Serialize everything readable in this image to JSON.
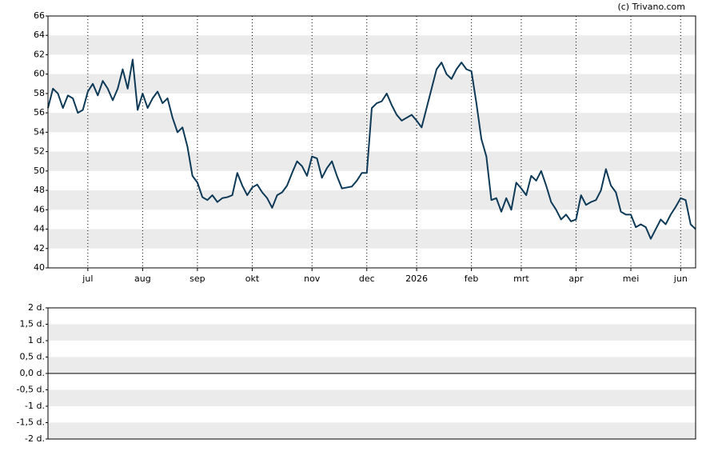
{
  "watermark": "(c) Trivano.com",
  "chart_data": [
    {
      "type": "line",
      "x": [
        0,
        1,
        2,
        3,
        4,
        5,
        6,
        7,
        8,
        9,
        10,
        11,
        12,
        13,
        14,
        15,
        16,
        17,
        18,
        19,
        20,
        21,
        22,
        23,
        24,
        25,
        26,
        27,
        28,
        29,
        30,
        31,
        32,
        33,
        34,
        35,
        36,
        37,
        38,
        39,
        40,
        41,
        42,
        43,
        44,
        45,
        46,
        47,
        48,
        49,
        50,
        51,
        52,
        53,
        54,
        55,
        56,
        57,
        58,
        59,
        60,
        61,
        62,
        63,
        64,
        65,
        66,
        67,
        68,
        69,
        70,
        71,
        72,
        73,
        74,
        75,
        76,
        77,
        78,
        79,
        80,
        81,
        82,
        83,
        84,
        85,
        86,
        87,
        88,
        89,
        90,
        91,
        92,
        93,
        94,
        95,
        96,
        97,
        98,
        99,
        100,
        101,
        102,
        103,
        104,
        105,
        106,
        107,
        108,
        109,
        110,
        111,
        112,
        113,
        114,
        115,
        116,
        117,
        118,
        119,
        120,
        121,
        122,
        123,
        124,
        125,
        126,
        127,
        128,
        129,
        130
      ],
      "series": [
        {
          "color": "#0e3a57",
          "values": [
            56.5,
            58.5,
            58,
            56.5,
            57.8,
            57.5,
            56,
            56.3,
            58.2,
            59,
            57.8,
            59.3,
            58.5,
            57.3,
            58.5,
            60.5,
            58.5,
            61.5,
            56.3,
            58,
            56.5,
            57.5,
            58.2,
            57,
            57.5,
            55.5,
            54,
            54.5,
            52.5,
            49.5,
            48.8,
            47.3,
            47,
            47.5,
            46.8,
            47.2,
            47.3,
            47.5,
            49.8,
            48.5,
            47.5,
            48.3,
            48.6,
            47.8,
            47.2,
            46.2,
            47.5,
            47.8,
            48.5,
            49.8,
            51,
            50.5,
            49.5,
            51.5,
            51.3,
            49.3,
            50.3,
            51,
            49.5,
            48.2,
            48.3,
            48.4,
            49,
            49.8,
            49.8,
            56.5,
            57,
            57.2,
            58,
            56.8,
            55.8,
            55.2,
            55.5,
            55.8,
            55.2,
            54.5,
            56.5,
            58.5,
            60.5,
            61.2,
            60,
            59.5,
            60.5,
            61.2,
            60.5,
            60.3,
            57,
            53.3,
            51.5,
            47,
            47.2,
            45.8,
            47.2,
            46,
            48.8,
            48.2,
            47.5,
            49.5,
            49,
            50,
            48.5,
            46.8,
            46,
            45,
            45.5,
            44.8,
            45,
            47.5,
            46.5,
            46.8,
            47,
            48,
            50.2,
            48.5,
            47.8,
            45.8,
            45.5,
            45.5,
            44.2,
            44.5,
            44.2,
            43,
            44,
            45,
            44.5,
            45.5,
            46.3,
            47.2,
            47,
            44.5,
            44
          ]
        }
      ],
      "xlim": [
        0,
        130
      ],
      "xticks": [
        {
          "value": 8,
          "label": "jul"
        },
        {
          "value": 19,
          "label": "aug"
        },
        {
          "value": 30,
          "label": "sep"
        },
        {
          "value": 41,
          "label": "okt"
        },
        {
          "value": 53,
          "label": "nov"
        },
        {
          "value": 64,
          "label": "dec"
        },
        {
          "value": 74,
          "label": "2026"
        },
        {
          "value": 85,
          "label": "feb"
        },
        {
          "value": 95,
          "label": "mrt"
        },
        {
          "value": 106,
          "label": "apr"
        },
        {
          "value": 117,
          "label": "mei"
        },
        {
          "value": 127,
          "label": "jun"
        }
      ],
      "ylim": [
        40,
        66
      ],
      "yticks": [
        40,
        42,
        44,
        46,
        48,
        50,
        52,
        54,
        56,
        58,
        60,
        62,
        64,
        66
      ],
      "grid": true
    },
    {
      "type": "line",
      "ylim": [
        -2,
        2
      ],
      "yticks": [
        {
          "value": -2,
          "label": "-2 d."
        },
        {
          "value": -1.5,
          "label": "-1,5 d."
        },
        {
          "value": -1,
          "label": "-1 d."
        },
        {
          "value": -0.5,
          "label": "-0,5 d."
        },
        {
          "value": 0,
          "label": "0,0 d."
        },
        {
          "value": 0.5,
          "label": "0,5 d."
        },
        {
          "value": 1,
          "label": "1 d."
        },
        {
          "value": 1.5,
          "label": "1,5 d."
        },
        {
          "value": 2,
          "label": "2 d."
        }
      ],
      "grid": true
    }
  ]
}
